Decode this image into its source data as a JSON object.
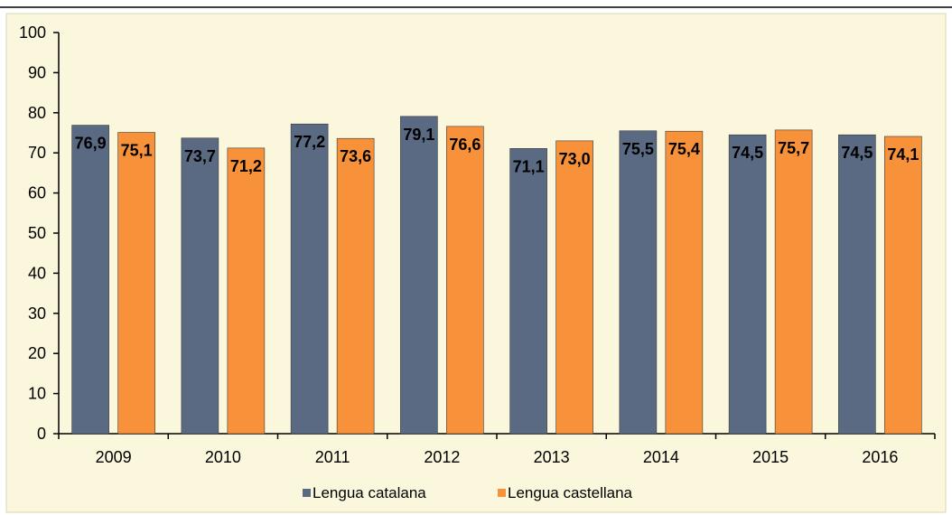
{
  "chart_data": {
    "type": "bar",
    "categories": [
      "2009",
      "2010",
      "2011",
      "2012",
      "2013",
      "2014",
      "2015",
      "2016"
    ],
    "series": [
      {
        "name": "Lengua catalana",
        "values": [
          76.9,
          73.7,
          77.2,
          79.1,
          71.1,
          75.5,
          74.5,
          74.5
        ],
        "labels": [
          "76,9",
          "73,7",
          "77,2",
          "79,1",
          "71,1",
          "75,5",
          "74,5",
          "74,5"
        ],
        "color": "#5a6a82"
      },
      {
        "name": "Lengua castellana",
        "values": [
          75.1,
          71.2,
          73.6,
          76.6,
          73.0,
          75.4,
          75.7,
          74.1
        ],
        "labels": [
          "75,1",
          "71,2",
          "73,6",
          "76,6",
          "73,0",
          "75,4",
          "75,7",
          "74,1"
        ],
        "color": "#f7923a"
      }
    ],
    "ylim": [
      0,
      100
    ],
    "yticks": [
      "0",
      "10",
      "20",
      "30",
      "40",
      "50",
      "60",
      "70",
      "80",
      "90",
      "100"
    ],
    "title": "",
    "xlabel": "",
    "ylabel": "",
    "grid": false,
    "legend_position": "bottom",
    "background_color": "#fbf7dc",
    "data_label_position": "inside-top"
  }
}
